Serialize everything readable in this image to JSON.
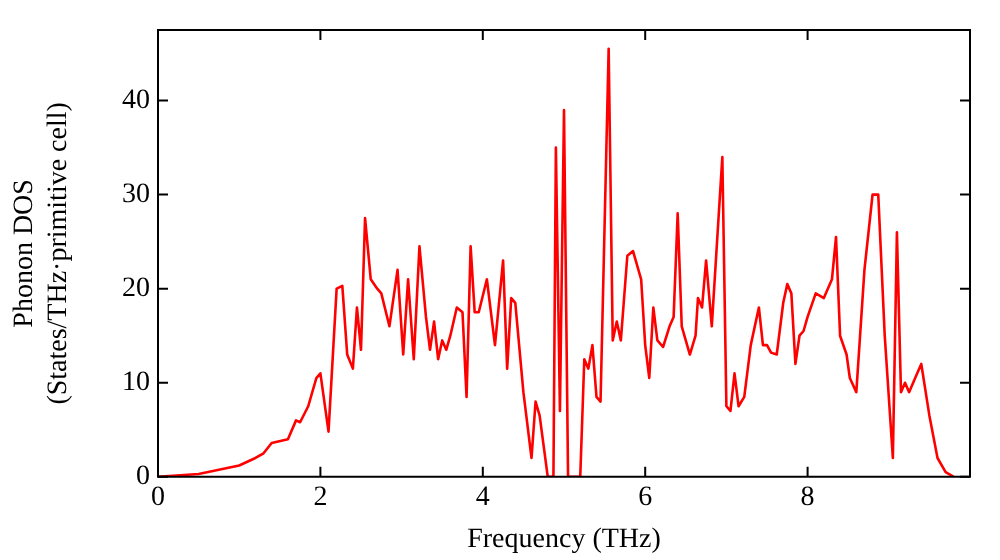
{
  "chart_data": {
    "type": "line",
    "xlabel": "Frequency (THz)",
    "ylabel": "Phonon DOS\n(States/THz·primitive cell)",
    "xlim": [
      0,
      10
    ],
    "ylim": [
      0,
      47.5
    ],
    "xticks": [
      0,
      2,
      4,
      6,
      8
    ],
    "yticks": [
      0,
      10,
      20,
      30,
      40
    ],
    "grid": false,
    "legend": false,
    "marker": "none",
    "line_style": "solid",
    "series": [
      {
        "color": "#ff0000",
        "x": [
          0,
          0.5,
          1.0,
          1.2,
          1.3,
          1.4,
          1.6,
          1.7,
          1.75,
          1.85,
          1.95,
          2.0,
          2.1,
          2.2,
          2.27,
          2.33,
          2.4,
          2.45,
          2.5,
          2.55,
          2.62,
          2.7,
          2.75,
          2.85,
          2.95,
          3.02,
          3.08,
          3.15,
          3.22,
          3.3,
          3.35,
          3.4,
          3.45,
          3.5,
          3.55,
          3.6,
          3.68,
          3.75,
          3.8,
          3.85,
          3.9,
          3.95,
          4.05,
          4.15,
          4.25,
          4.3,
          4.35,
          4.4,
          4.5,
          4.6,
          4.65,
          4.7,
          4.8,
          4.87,
          4.9,
          4.95,
          5.0,
          5.05,
          5.2,
          5.25,
          5.3,
          5.35,
          5.4,
          5.45,
          5.55,
          5.6,
          5.65,
          5.7,
          5.78,
          5.85,
          5.95,
          6.0,
          6.05,
          6.1,
          6.15,
          6.22,
          6.3,
          6.35,
          6.4,
          6.45,
          6.55,
          6.62,
          6.65,
          6.7,
          6.75,
          6.82,
          6.95,
          7.0,
          7.05,
          7.1,
          7.15,
          7.22,
          7.3,
          7.4,
          7.45,
          7.5,
          7.55,
          7.62,
          7.7,
          7.75,
          7.8,
          7.85,
          7.9,
          7.95,
          8.0,
          8.1,
          8.2,
          8.3,
          8.35,
          8.4,
          8.48,
          8.52,
          8.6,
          8.7,
          8.75,
          8.8,
          8.87,
          8.95,
          9.05,
          9.1,
          9.15,
          9.2,
          9.25,
          9.35,
          9.4,
          9.5,
          9.6,
          9.7,
          9.8
        ],
        "values": [
          0,
          0.3,
          1.2,
          2,
          2.5,
          3.6,
          4,
          6,
          5.8,
          7.5,
          10.5,
          11,
          4.8,
          20,
          20.3,
          13,
          11.5,
          18,
          13.5,
          27.5,
          21,
          20,
          19.5,
          16,
          22,
          13,
          21,
          12.5,
          24.5,
          17,
          13.5,
          16.5,
          12.5,
          14.5,
          13.5,
          15,
          18,
          17.5,
          8.5,
          24.5,
          17.5,
          17.5,
          21,
          14,
          23,
          11.5,
          19,
          18.5,
          9,
          2,
          8,
          6.5,
          0,
          0,
          35,
          7,
          39,
          0,
          0,
          12.5,
          11.5,
          14,
          8.5,
          8,
          45.5,
          14.5,
          16.5,
          14.5,
          23.5,
          24,
          21,
          14,
          10.5,
          18,
          14.5,
          13.8,
          16,
          17,
          28,
          16,
          13,
          15,
          19,
          18,
          23,
          16,
          34,
          7.5,
          7,
          11,
          7.5,
          8.5,
          14,
          18,
          14,
          14,
          13.2,
          13,
          18.5,
          20.5,
          19.5,
          12,
          15,
          15.5,
          17,
          19.5,
          19,
          21,
          25.5,
          15,
          13,
          10.5,
          9,
          22,
          26,
          30,
          30,
          15,
          2,
          26,
          9,
          10,
          9,
          11,
          12,
          6.5,
          2,
          0.5,
          0
        ]
      }
    ]
  }
}
